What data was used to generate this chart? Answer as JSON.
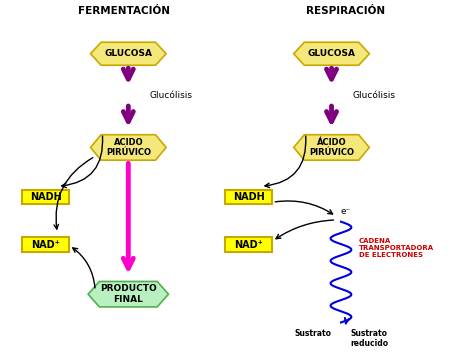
{
  "bg_color": "#ffffff",
  "title_ferm": "FERMENTACIÓN",
  "title_resp": "RESPIRACIÓN",
  "title_fontsize": 7.5,
  "glucosa_color": "#f5e87a",
  "glucosa_edge": "#c8a800",
  "nadh_color": "#ffff00",
  "nad_color": "#ffff00",
  "acido_color": "#f5e87a",
  "producto_color": "#b8f0c0",
  "producto_edge": "#50b050",
  "arrow_purple": "#800080",
  "arrow_magenta": "#ff00cc",
  "arrow_black": "#000000",
  "arrow_blue": "#0000dd",
  "text_red": "#cc0000",
  "glucolisis_text": "Glucólisis",
  "glucosa_text": "GLUCOSA",
  "acido_text_ferm": "ACIDO\nPIRÚVICO",
  "acido_text_resp": "ÁCIDO\nPIRÚVICO",
  "nadh_text": "NADH",
  "nad_text": "NAD⁺",
  "producto_text": "PRODUCTO\nFINAL",
  "cadena_text": "CADENA\nTRANSPORTADORA\nDE ELECTRONES",
  "sustrato_text": "Sustrato",
  "sustrato_red_text": "Sustrato\nreducido",
  "electron_label": "e⁻"
}
